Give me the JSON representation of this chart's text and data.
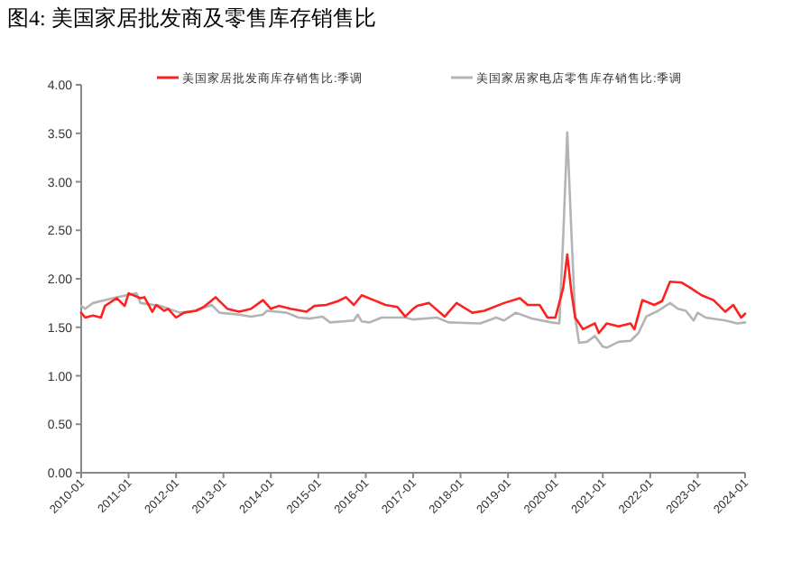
{
  "chart_data": {
    "type": "line",
    "title": "图4:    美国家居批发商及零售库存销售比",
    "xlim": [
      "2010-01",
      "2024-01"
    ],
    "ylim": [
      0,
      4
    ],
    "xticks": [
      "2010-01",
      "2011-01",
      "2012-01",
      "2013-01",
      "2014-01",
      "2015-01",
      "2016-01",
      "2017-01",
      "2018-01",
      "2019-01",
      "2020-01",
      "2021-01",
      "2022-01",
      "2023-01",
      "2024-01"
    ],
    "yticks": [
      {
        "value": 0,
        "label": "0.00"
      },
      {
        "value": 0.5,
        "label": "0.50"
      },
      {
        "value": 1,
        "label": "1.00"
      },
      {
        "value": 1.5,
        "label": "1.50"
      },
      {
        "value": 2,
        "label": "2.00"
      },
      {
        "value": 2.5,
        "label": "2.50"
      },
      {
        "value": 3,
        "label": "3.00"
      },
      {
        "value": 3.5,
        "label": "3.50"
      },
      {
        "value": 4,
        "label": "4.00"
      }
    ],
    "grid": false,
    "legend": "top",
    "marker": "none",
    "line_style": "solid",
    "series": [
      {
        "name": "美国家居批发商库存销售比:季调",
        "color": "#ff2020",
        "x": [
          "2010-01",
          "2010-02",
          "2010-04",
          "2010-06",
          "2010-07",
          "2010-10",
          "2010-12",
          "2011-01",
          "2011-04",
          "2011-05",
          "2011-07",
          "2011-08",
          "2011-10",
          "2011-11",
          "2012-01",
          "2012-03",
          "2012-06",
          "2012-08",
          "2012-11",
          "2013-02",
          "2013-05",
          "2013-08",
          "2013-11",
          "2014-01",
          "2014-03",
          "2014-06",
          "2014-10",
          "2014-12",
          "2015-03",
          "2015-06",
          "2015-08",
          "2015-10",
          "2015-12",
          "2016-03",
          "2016-06",
          "2016-09",
          "2016-11",
          "2017-01",
          "2017-02",
          "2017-05",
          "2017-09",
          "2017-12",
          "2018-04",
          "2018-07",
          "2018-12",
          "2019-04",
          "2019-06",
          "2019-09",
          "2019-11",
          "2020-01",
          "2020-03",
          "2020-04",
          "2020-05",
          "2020-06",
          "2020-08",
          "2020-11",
          "2020-12",
          "2021-02",
          "2021-05",
          "2021-08",
          "2021-09",
          "2021-11",
          "2022-02",
          "2022-04",
          "2022-06",
          "2022-09",
          "2022-11",
          "2023-02",
          "2023-05",
          "2023-08",
          "2023-10",
          "2023-12",
          "2024-01"
        ],
        "values": [
          1.65,
          1.6,
          1.62,
          1.6,
          1.72,
          1.8,
          1.72,
          1.85,
          1.8,
          1.81,
          1.66,
          1.73,
          1.67,
          1.69,
          1.6,
          1.65,
          1.67,
          1.71,
          1.81,
          1.69,
          1.66,
          1.69,
          1.78,
          1.69,
          1.72,
          1.69,
          1.66,
          1.72,
          1.73,
          1.77,
          1.81,
          1.73,
          1.83,
          1.78,
          1.73,
          1.71,
          1.61,
          1.69,
          1.72,
          1.75,
          1.61,
          1.75,
          1.65,
          1.67,
          1.75,
          1.8,
          1.73,
          1.73,
          1.6,
          1.6,
          1.91,
          2.25,
          1.88,
          1.6,
          1.48,
          1.54,
          1.44,
          1.54,
          1.51,
          1.54,
          1.48,
          1.78,
          1.73,
          1.77,
          1.97,
          1.96,
          1.91,
          1.83,
          1.78,
          1.66,
          1.73,
          1.6,
          1.64
        ]
      },
      {
        "name": "美国家居家电店零售库存销售比:季调",
        "color": "#b4b4b4",
        "x": [
          "2010-01",
          "2010-02",
          "2010-04",
          "2010-10",
          "2011-03",
          "2011-04",
          "2011-09",
          "2012-02",
          "2012-06",
          "2012-10",
          "2012-12",
          "2013-05",
          "2013-08",
          "2013-11",
          "2013-12",
          "2014-05",
          "2014-08",
          "2014-11",
          "2015-02",
          "2015-04",
          "2015-10",
          "2015-11",
          "2015-12",
          "2016-02",
          "2016-05",
          "2016-11",
          "2017-01",
          "2017-07",
          "2017-10",
          "2018-06",
          "2018-10",
          "2018-12",
          "2019-03",
          "2019-07",
          "2019-12",
          "2020-02",
          "2020-03",
          "2020-04",
          "2020-05",
          "2020-06",
          "2020-07",
          "2020-09",
          "2020-11",
          "2021-01",
          "2021-02",
          "2021-05",
          "2021-08",
          "2021-10",
          "2021-12",
          "2022-03",
          "2022-06",
          "2022-08",
          "2022-10",
          "2022-12",
          "2023-01",
          "2023-03",
          "2023-08",
          "2023-11",
          "2024-01"
        ],
        "values": [
          1.72,
          1.69,
          1.75,
          1.81,
          1.85,
          1.75,
          1.72,
          1.65,
          1.67,
          1.73,
          1.65,
          1.63,
          1.61,
          1.63,
          1.67,
          1.65,
          1.6,
          1.59,
          1.61,
          1.55,
          1.57,
          1.63,
          1.56,
          1.55,
          1.6,
          1.6,
          1.58,
          1.6,
          1.55,
          1.54,
          1.6,
          1.57,
          1.65,
          1.59,
          1.55,
          1.54,
          2.46,
          3.51,
          2.52,
          1.6,
          1.34,
          1.35,
          1.41,
          1.3,
          1.29,
          1.35,
          1.36,
          1.44,
          1.61,
          1.67,
          1.75,
          1.69,
          1.67,
          1.57,
          1.65,
          1.6,
          1.57,
          1.54,
          1.55
        ]
      }
    ]
  }
}
